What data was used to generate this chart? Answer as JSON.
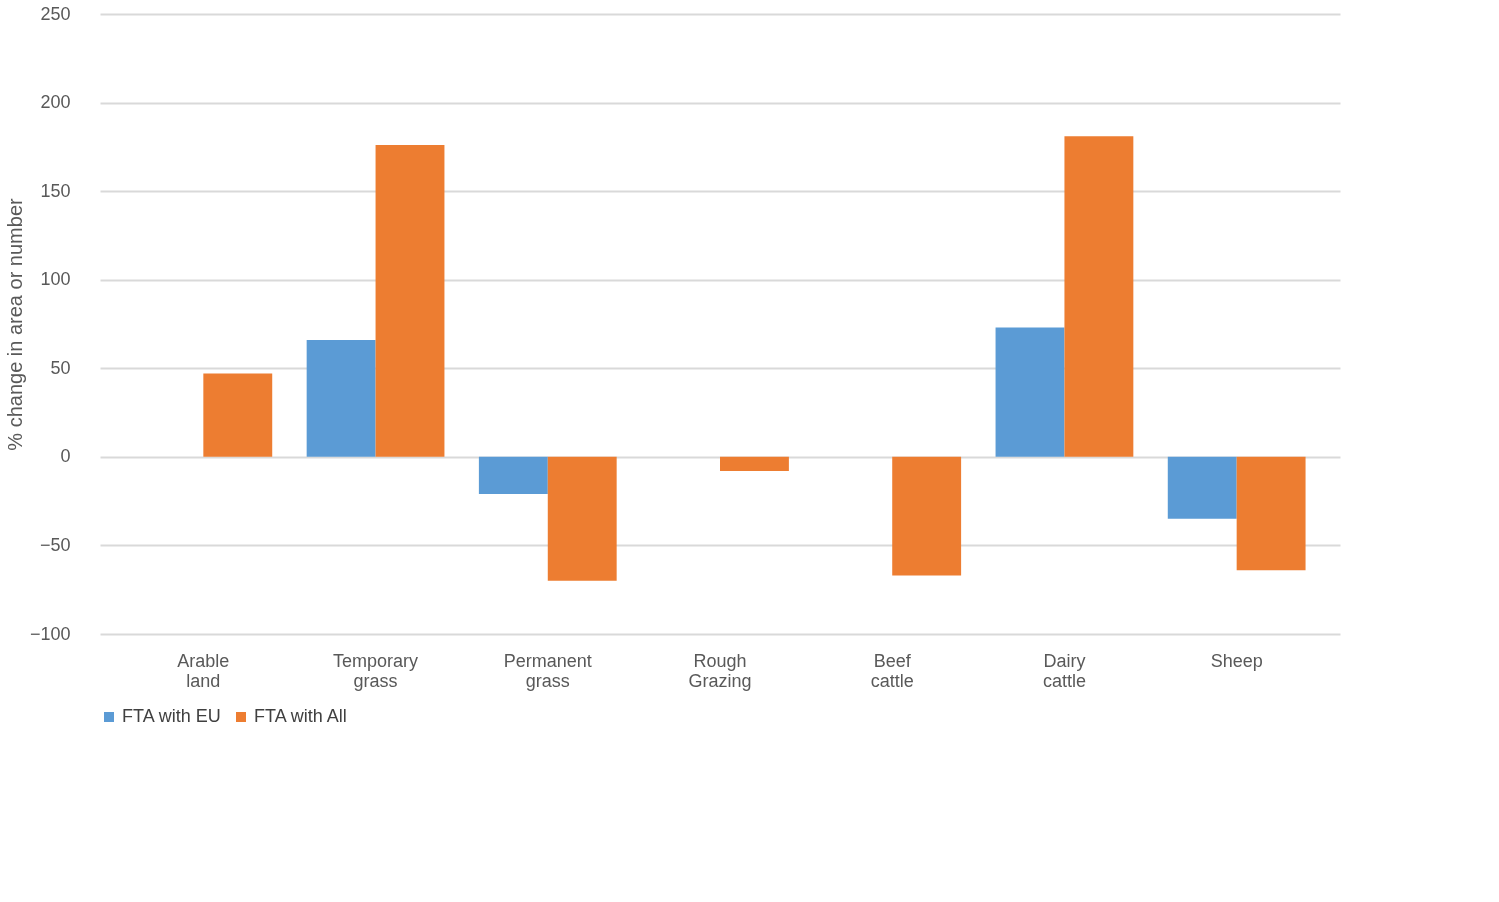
{
  "chart_data": {
    "type": "bar",
    "categories": [
      "Arable land",
      "Temporary grass",
      "Permanent grass",
      "Rough Grazing",
      "Beef cattle",
      "Dairy cattle",
      "Sheep"
    ],
    "series": [
      {
        "name": "FTA with EU",
        "color": "#5b9bd5",
        "values": [
          0,
          66,
          -21,
          0,
          0,
          73,
          -35
        ]
      },
      {
        "name": "FTA with All",
        "color": "#ed7d31",
        "values": [
          47,
          176,
          -70,
          -8,
          -67,
          181,
          -64
        ]
      }
    ],
    "ylabel": "% change in area or number",
    "ylim": [
      -100,
      250
    ],
    "yticks": [
      -100,
      -50,
      0,
      50,
      100,
      150,
      200,
      250
    ],
    "grid": "y",
    "legend": "bottom"
  }
}
